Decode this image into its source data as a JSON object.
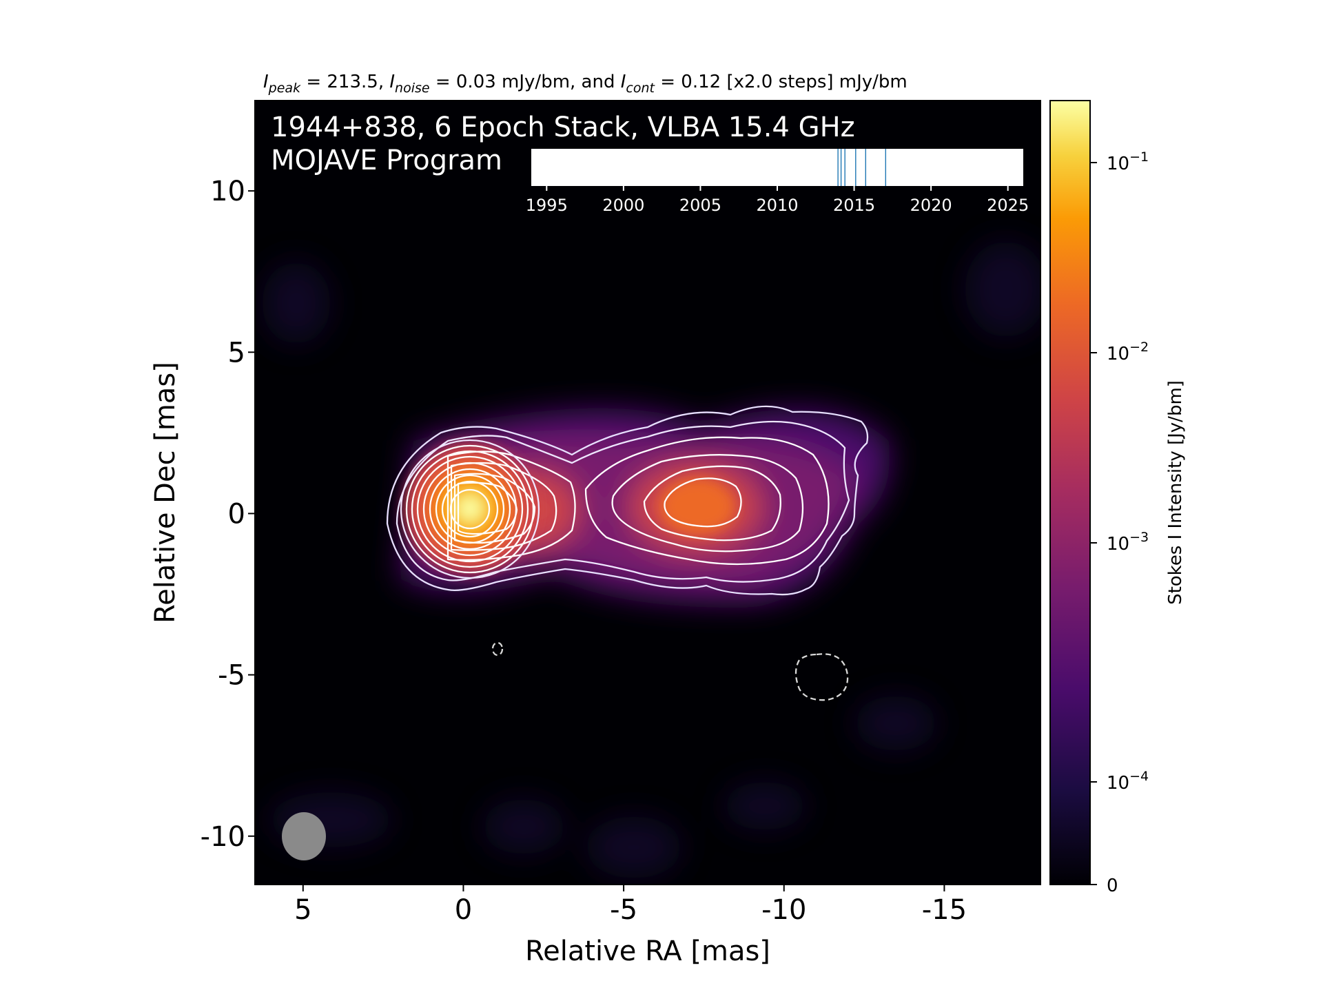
{
  "header": {
    "peak_label": "I",
    "peak_sub": "peak",
    "peak_text": " = 213.5, ",
    "noise_label": "I",
    "noise_sub": "noise",
    "noise_text": " = 0.03 mJy/bm, and ",
    "cont_label": "I",
    "cont_sub": "cont",
    "cont_text": " = 0.12 [x2.0 steps] mJy/bm"
  },
  "overlay": {
    "line1": "1944+838, 6 Epoch Stack, VLBA 15.4 GHz",
    "line2": "MOJAVE Program"
  },
  "colors": {
    "background": "#000004",
    "contour": "#ffffff",
    "beam": "#8a8a8a",
    "epoch_line": "#1f77b4",
    "cmap": [
      "#000004",
      "#1b0c41",
      "#4a0c6b",
      "#781c6d",
      "#a52c60",
      "#cf4446",
      "#ed6925",
      "#fb9b06",
      "#f7d13d",
      "#fcffa4"
    ]
  },
  "chart_data": [
    {
      "type": "heatmap",
      "title": "",
      "xlabel": "Relative RA [mas]",
      "ylabel": "Relative Dec [mas]",
      "xlim": [
        6.5,
        -18.0
      ],
      "ylim": [
        -11.5,
        12.8
      ],
      "x_ticks": [
        5,
        0,
        -5,
        -10,
        -15
      ],
      "x_tick_labels": [
        "5",
        "0",
        "-5",
        "-10",
        "-15"
      ],
      "y_ticks": [
        10,
        5,
        0,
        -5,
        -10
      ],
      "y_tick_labels": [
        "10",
        "5",
        "0",
        "-5",
        "-10"
      ],
      "grid": false,
      "components": [
        {
          "name": "core",
          "ra": 0.0,
          "dec": 0.0,
          "flux_jy_per_bm": 0.2135
        },
        {
          "name": "jet",
          "ra": -7.2,
          "dec": 0.1,
          "flux_jy_per_bm": 0.0105
        }
      ],
      "contours_mjy_per_bm": [
        -0.12,
        0.12,
        0.24,
        0.48,
        0.96,
        1.92,
        3.84,
        7.68,
        15.36,
        30.72,
        61.44,
        122.88
      ],
      "beam": {
        "ra": 5.0,
        "dec": -10.2,
        "major_mas": 1.8,
        "minor_mas": 1.4,
        "position_angle_deg": 0
      }
    },
    {
      "type": "scatter",
      "title": "",
      "xlim": [
        1994,
        2026
      ],
      "x_ticks": [
        1995,
        2000,
        2005,
        2010,
        2015,
        2020,
        2025
      ],
      "x_tick_labels": [
        "1995",
        "2000",
        "2005",
        "2010",
        "2015",
        "2020",
        "2025"
      ],
      "epochs": [
        2013.95,
        2014.15,
        2014.4,
        2015.1,
        2015.75,
        2017.05
      ]
    },
    {
      "type": "heatmap",
      "title": "",
      "ylabel": "Stokes I Intensity [Jy/bm]",
      "scale": "log",
      "vmin": 0,
      "vmax": 0.2135,
      "ticks": [
        0.0001,
        0.001,
        0.01,
        0.1
      ],
      "tick_labels": [
        "10",
        "10",
        "10",
        "10"
      ],
      "tick_exponents": [
        "−4",
        "−3",
        "−2",
        "−1"
      ],
      "zero_label": "0"
    }
  ]
}
